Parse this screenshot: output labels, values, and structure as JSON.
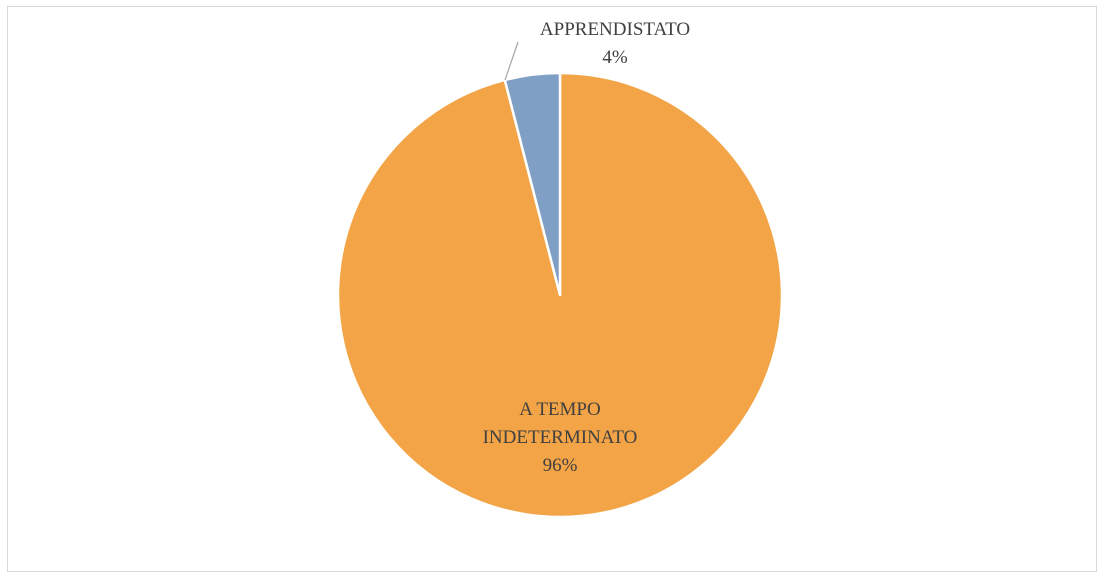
{
  "chart_data": {
    "type": "pie",
    "categories": [
      "A TEMPO INDETERMINATO",
      "APPRENDISTATO"
    ],
    "values": [
      96,
      4
    ],
    "value_labels": [
      "96%",
      "4%"
    ],
    "colors": [
      "#f2a446",
      "#7f9fc5"
    ]
  }
}
